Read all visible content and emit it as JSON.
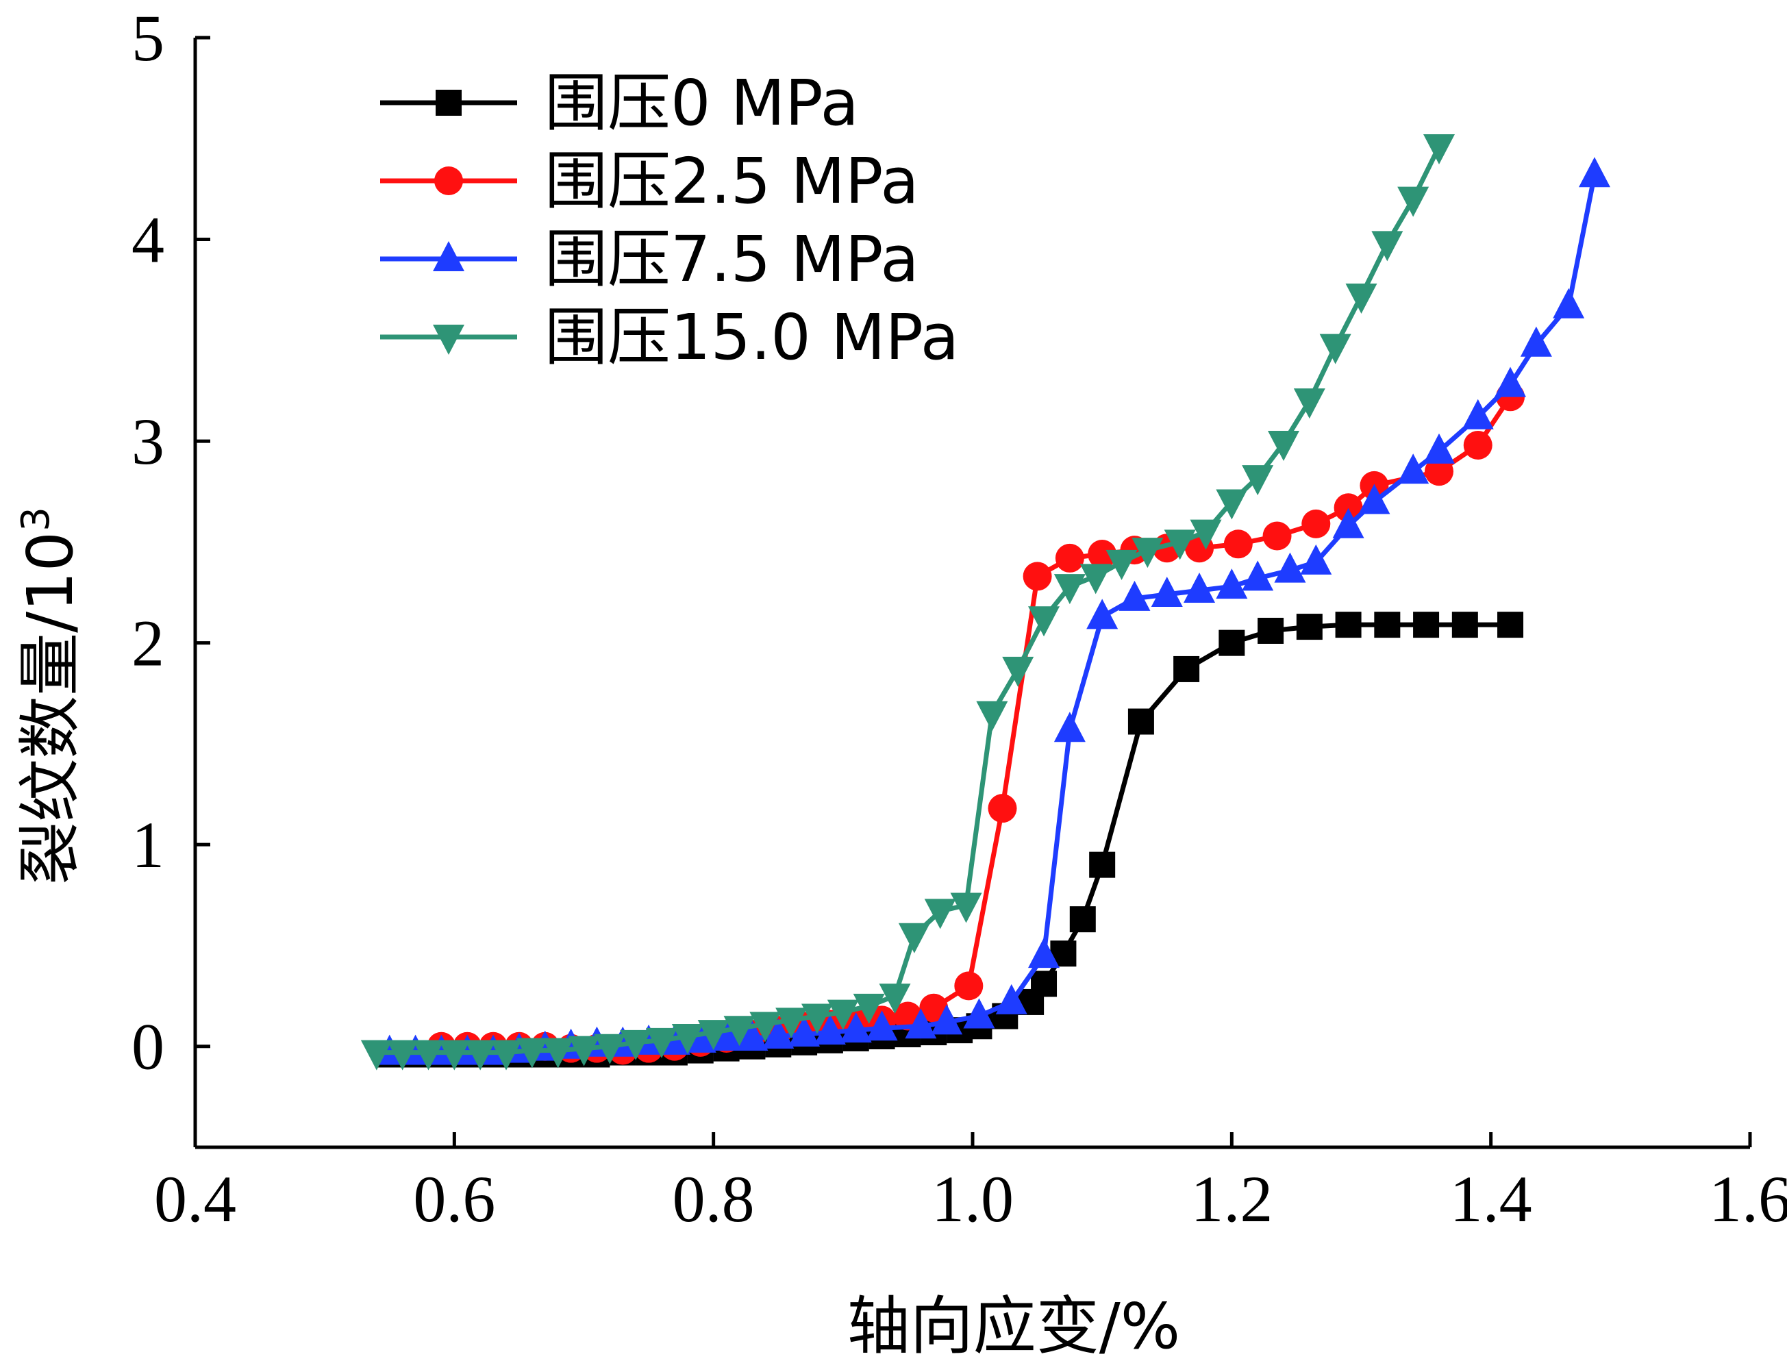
{
  "chart_data": {
    "type": "line",
    "xlabel": "轴向应变/%",
    "ylabel": "裂纹数量/10",
    "ylabel_superscript": "3",
    "xlim": [
      0.4,
      1.6
    ],
    "ylim": [
      -0.5,
      5
    ],
    "x_ticks": [
      "0.4",
      "0.6",
      "0.8",
      "1.0",
      "1.2",
      "1.4",
      "1.6"
    ],
    "y_ticks": [
      "0",
      "1",
      "2",
      "3",
      "4",
      "5"
    ],
    "legend_position": "top-left",
    "grid": false,
    "series": [
      {
        "name": "围压0 MPa",
        "color": "#000000",
        "marker": "square",
        "x": [
          0.55,
          0.57,
          0.59,
          0.61,
          0.63,
          0.65,
          0.67,
          0.69,
          0.71,
          0.73,
          0.75,
          0.77,
          0.79,
          0.81,
          0.83,
          0.85,
          0.87,
          0.89,
          0.91,
          0.93,
          0.95,
          0.97,
          0.99,
          1.005,
          1.025,
          1.045,
          1.055,
          1.07,
          1.085,
          1.1,
          1.13,
          1.165,
          1.2,
          1.23,
          1.26,
          1.29,
          1.32,
          1.35,
          1.38,
          1.415
        ],
        "y": [
          -0.04,
          -0.04,
          -0.04,
          -0.04,
          -0.04,
          -0.04,
          -0.04,
          -0.04,
          -0.04,
          -0.03,
          -0.03,
          -0.03,
          -0.02,
          -0.01,
          0.0,
          0.01,
          0.02,
          0.03,
          0.04,
          0.05,
          0.06,
          0.07,
          0.08,
          0.1,
          0.15,
          0.22,
          0.31,
          0.46,
          0.63,
          0.9,
          1.61,
          1.87,
          2.0,
          2.06,
          2.08,
          2.09,
          2.09,
          2.09,
          2.09,
          2.09
        ]
      },
      {
        "name": "围压2.5 MPa",
        "color": "#ff1010",
        "marker": "circle",
        "x": [
          0.59,
          0.61,
          0.63,
          0.65,
          0.67,
          0.69,
          0.71,
          0.73,
          0.75,
          0.77,
          0.79,
          0.81,
          0.83,
          0.85,
          0.87,
          0.89,
          0.91,
          0.93,
          0.95,
          0.97,
          0.997,
          1.023,
          1.05,
          1.075,
          1.1,
          1.125,
          1.15,
          1.175,
          1.205,
          1.235,
          1.265,
          1.29,
          1.31,
          1.36,
          1.39,
          1.415
        ],
        "y": [
          0.0,
          0.0,
          0.0,
          0.0,
          0.0,
          -0.01,
          -0.01,
          -0.02,
          -0.01,
          0.0,
          0.02,
          0.04,
          0.06,
          0.08,
          0.1,
          0.11,
          0.12,
          0.13,
          0.15,
          0.19,
          0.3,
          1.18,
          2.33,
          2.42,
          2.44,
          2.46,
          2.47,
          2.47,
          2.49,
          2.53,
          2.59,
          2.67,
          2.78,
          2.85,
          2.98,
          3.22
        ]
      },
      {
        "name": "围压7.5 MPa",
        "color": "#1e3cff",
        "marker": "triangle-up",
        "x": [
          0.55,
          0.57,
          0.59,
          0.61,
          0.63,
          0.65,
          0.67,
          0.69,
          0.71,
          0.73,
          0.75,
          0.77,
          0.79,
          0.81,
          0.83,
          0.85,
          0.87,
          0.89,
          0.91,
          0.93,
          0.96,
          0.98,
          1.005,
          1.03,
          1.055,
          1.075,
          1.1,
          1.125,
          1.15,
          1.175,
          1.2,
          1.22,
          1.245,
          1.265,
          1.29,
          1.31,
          1.34,
          1.36,
          1.39,
          1.415,
          1.435,
          1.46,
          1.48
        ],
        "y": [
          -0.03,
          -0.03,
          -0.03,
          -0.03,
          -0.03,
          -0.02,
          -0.01,
          0.0,
          0.01,
          0.01,
          0.02,
          0.02,
          0.03,
          0.04,
          0.04,
          0.05,
          0.06,
          0.07,
          0.08,
          0.09,
          0.1,
          0.12,
          0.15,
          0.22,
          0.45,
          1.57,
          2.13,
          2.22,
          2.24,
          2.26,
          2.28,
          2.32,
          2.36,
          2.4,
          2.58,
          2.7,
          2.85,
          2.95,
          3.12,
          3.28,
          3.48,
          3.67,
          4.32
        ]
      },
      {
        "name": "围压15.0 MPa",
        "color": "#2e9476",
        "marker": "triangle-down",
        "x": [
          0.54,
          0.56,
          0.58,
          0.6,
          0.62,
          0.64,
          0.66,
          0.68,
          0.7,
          0.72,
          0.74,
          0.76,
          0.78,
          0.8,
          0.82,
          0.84,
          0.86,
          0.88,
          0.9,
          0.92,
          0.94,
          0.955,
          0.975,
          0.995,
          1.015,
          1.035,
          1.055,
          1.075,
          1.095,
          1.115,
          1.135,
          1.16,
          1.18,
          1.2,
          1.22,
          1.24,
          1.26,
          1.28,
          1.3,
          1.32,
          1.34,
          1.36
        ],
        "y": [
          -0.03,
          -0.03,
          -0.03,
          -0.03,
          -0.03,
          -0.03,
          -0.02,
          -0.02,
          -0.01,
          0.0,
          0.02,
          0.03,
          0.05,
          0.07,
          0.09,
          0.11,
          0.13,
          0.15,
          0.17,
          0.2,
          0.25,
          0.55,
          0.67,
          0.7,
          1.65,
          1.87,
          2.12,
          2.28,
          2.33,
          2.4,
          2.46,
          2.5,
          2.55,
          2.7,
          2.82,
          2.99,
          3.2,
          3.47,
          3.72,
          3.98,
          4.2,
          4.46
        ]
      }
    ]
  }
}
